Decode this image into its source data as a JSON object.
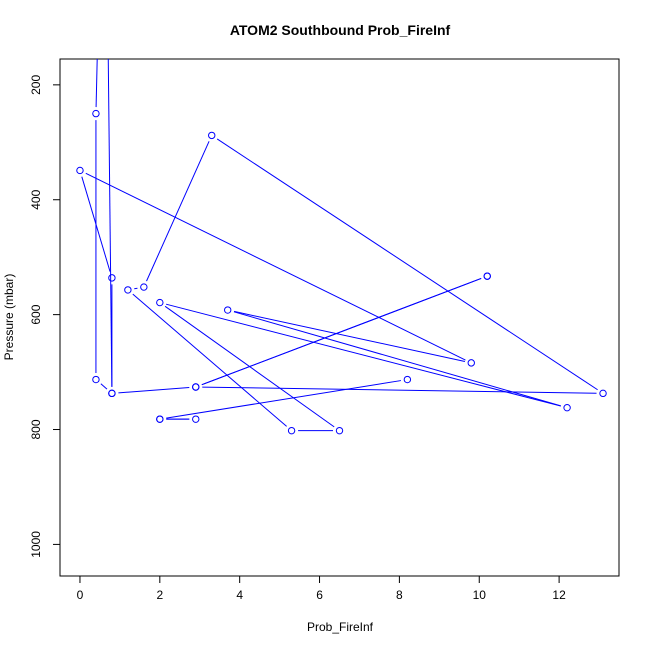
{
  "chart_data": {
    "type": "line",
    "title": "ATOM2 Southbound Prob_FireInf",
    "xlabel": "Prob_FireInf",
    "ylabel": "Pressure (mbar)",
    "xlim": [
      -0.5,
      13.5
    ],
    "ylim": [
      1055,
      155
    ],
    "y_reversed": true,
    "x_ticks": [
      0,
      2,
      4,
      6,
      8,
      10,
      12
    ],
    "y_ticks": [
      200,
      400,
      600,
      800,
      1000
    ],
    "grid": false,
    "series": [
      {
        "color": "#0000ff",
        "points": [
          {
            "x": 0.45,
            "y": 100
          },
          {
            "x": 0.4,
            "y": 250
          },
          {
            "x": 0.4,
            "y": 713
          },
          {
            "x": 0.8,
            "y": 737
          },
          {
            "x": 0.8,
            "y": 536
          },
          {
            "x": 0.0,
            "y": 349
          },
          {
            "x": 9.8,
            "y": 684
          },
          {
            "x": 3.7,
            "y": 592
          },
          {
            "x": 12.2,
            "y": 762
          },
          {
            "x": 2.0,
            "y": 579
          },
          {
            "x": 6.5,
            "y": 802
          },
          {
            "x": 5.3,
            "y": 802
          },
          {
            "x": 1.2,
            "y": 557
          },
          {
            "x": 1.6,
            "y": 552
          },
          {
            "x": 3.3,
            "y": 288
          },
          {
            "x": 13.1,
            "y": 737
          },
          {
            "x": 2.9,
            "y": 726
          },
          {
            "x": 0.8,
            "y": 737
          },
          {
            "x": 0.7,
            "y": 100
          }
        ]
      },
      {
        "color": "#0000ff",
        "points": [
          {
            "x": 10.2,
            "y": 533
          },
          {
            "x": 2.9,
            "y": 726
          },
          {
            "x": 10.2,
            "y": 533
          }
        ]
      },
      {
        "color": "#0000ff",
        "points": [
          {
            "x": 8.2,
            "y": 713
          },
          {
            "x": 2.0,
            "y": 782
          },
          {
            "x": 2.9,
            "y": 782
          },
          {
            "x": 2.0,
            "y": 782
          }
        ]
      }
    ]
  }
}
